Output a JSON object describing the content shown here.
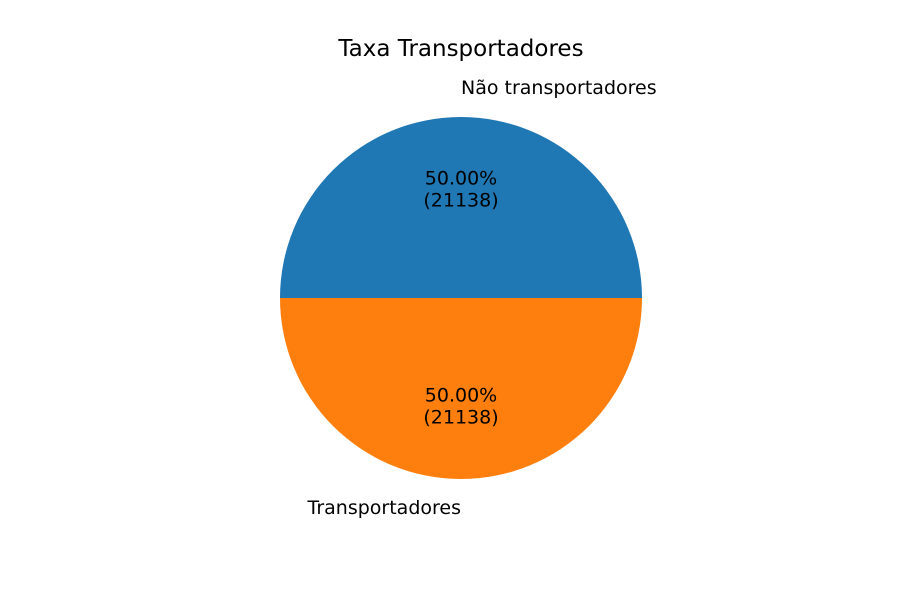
{
  "chart_data": {
    "type": "pie",
    "title": "Taxa Transportadores",
    "labels": [
      "Não transportadores",
      "Transportadores"
    ],
    "values": [
      21138,
      21138
    ],
    "percent_labels": [
      "50.00%",
      "50.00%"
    ],
    "count_labels": [
      "(21138)",
      "(21138)"
    ],
    "colors": [
      "#1f77b4",
      "#ff7f0e"
    ],
    "start_angle_deg": 0,
    "direction": "counterclockwise"
  }
}
